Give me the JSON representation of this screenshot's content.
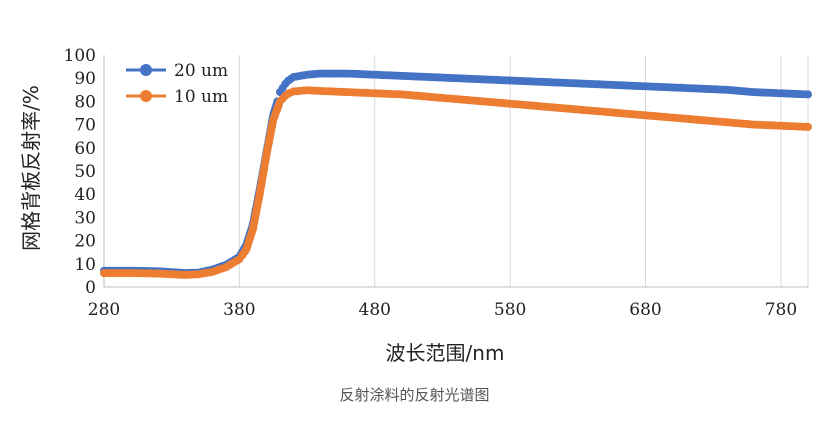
{
  "caption": "反射涂料的反射光谱图",
  "chart_data": {
    "type": "scatter",
    "title": "",
    "xlabel": "波长范围/nm",
    "ylabel": "网格背板反射率/%",
    "xlim": [
      280,
      800
    ],
    "ylim": [
      0,
      100
    ],
    "xticks": [
      "280",
      "380",
      "480",
      "580",
      "680",
      "780"
    ],
    "yticks": [
      "0",
      "10",
      "20",
      "30",
      "40",
      "50",
      "60",
      "70",
      "80",
      "90",
      "100"
    ],
    "grid": "vertical",
    "legend_position": "top-left",
    "series": [
      {
        "name": "20 um",
        "color": "#4472C4",
        "points": [
          [
            280,
            7
          ],
          [
            300,
            7
          ],
          [
            320,
            6.8
          ],
          [
            340,
            6
          ],
          [
            350,
            6.2
          ],
          [
            360,
            7.5
          ],
          [
            370,
            9.5
          ],
          [
            380,
            13
          ],
          [
            385,
            18
          ],
          [
            390,
            27
          ],
          [
            395,
            42
          ],
          [
            400,
            58
          ],
          [
            405,
            74
          ],
          [
            410,
            84
          ],
          [
            415,
            88.5
          ],
          [
            420,
            90.5
          ],
          [
            430,
            91.5
          ],
          [
            440,
            92
          ],
          [
            460,
            92
          ],
          [
            480,
            91.5
          ],
          [
            500,
            91
          ],
          [
            520,
            90.5
          ],
          [
            540,
            90
          ],
          [
            560,
            89.5
          ],
          [
            580,
            89
          ],
          [
            600,
            88.5
          ],
          [
            620,
            88
          ],
          [
            640,
            87.5
          ],
          [
            660,
            87
          ],
          [
            680,
            86.5
          ],
          [
            700,
            86
          ],
          [
            720,
            85.5
          ],
          [
            740,
            85
          ],
          [
            760,
            84
          ],
          [
            780,
            83.5
          ],
          [
            800,
            83
          ]
        ]
      },
      {
        "name": "10 um",
        "color": "#ED7D31",
        "points": [
          [
            280,
            6
          ],
          [
            300,
            6
          ],
          [
            320,
            5.8
          ],
          [
            340,
            5.2
          ],
          [
            350,
            5.5
          ],
          [
            360,
            6.5
          ],
          [
            370,
            8.5
          ],
          [
            380,
            12
          ],
          [
            385,
            16
          ],
          [
            390,
            25
          ],
          [
            395,
            40
          ],
          [
            400,
            57
          ],
          [
            405,
            72
          ],
          [
            410,
            80
          ],
          [
            415,
            83
          ],
          [
            420,
            84.3
          ],
          [
            430,
            84.8
          ],
          [
            440,
            84.5
          ],
          [
            460,
            84
          ],
          [
            480,
            83.5
          ],
          [
            500,
            83
          ],
          [
            520,
            82
          ],
          [
            540,
            81
          ],
          [
            560,
            80
          ],
          [
            580,
            79
          ],
          [
            600,
            78
          ],
          [
            620,
            77
          ],
          [
            640,
            76
          ],
          [
            660,
            75
          ],
          [
            680,
            74
          ],
          [
            700,
            73
          ],
          [
            720,
            72
          ],
          [
            740,
            71
          ],
          [
            760,
            70
          ],
          [
            780,
            69.5
          ],
          [
            800,
            69
          ]
        ]
      }
    ]
  }
}
